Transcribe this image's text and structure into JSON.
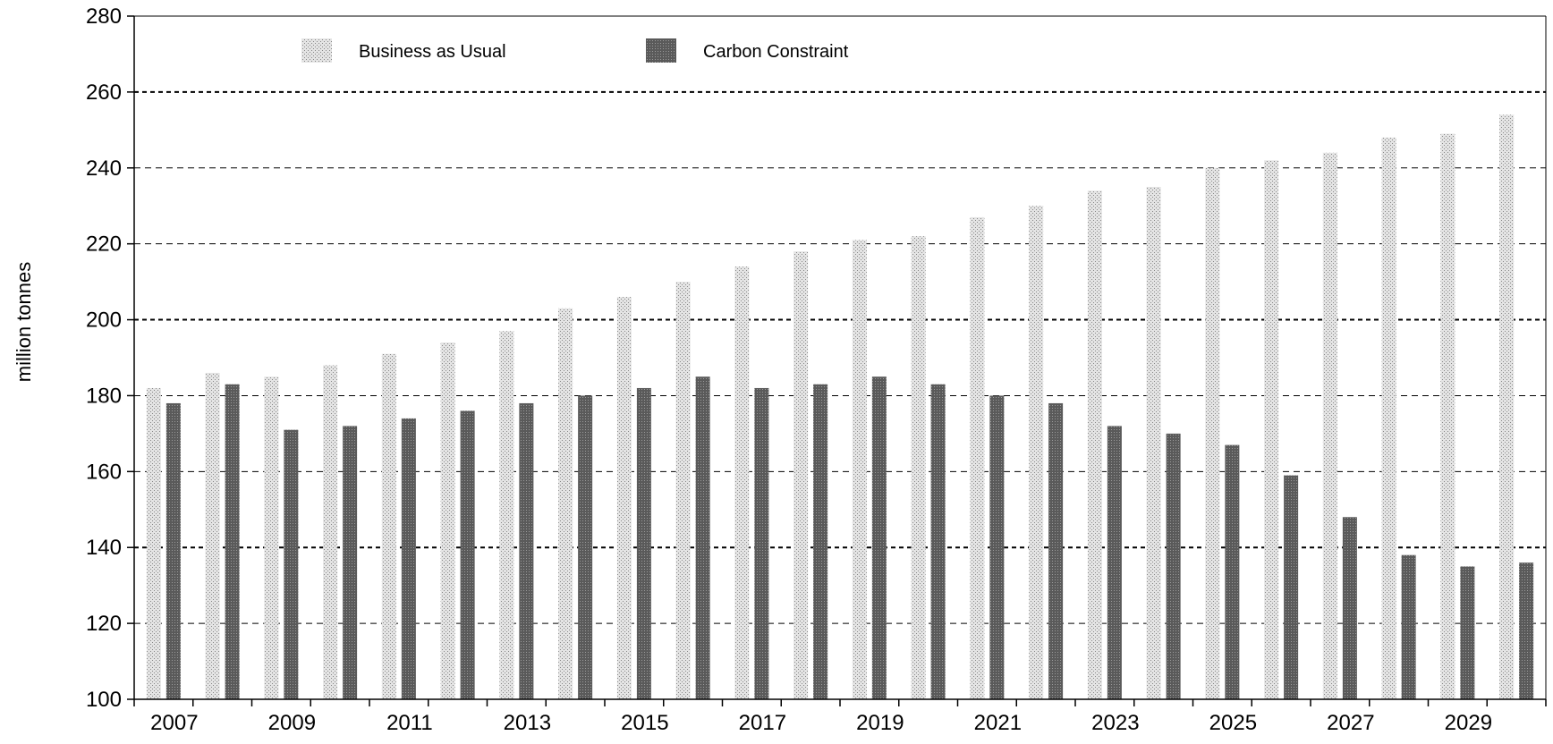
{
  "chart_data": {
    "type": "bar",
    "ylabel": "million tonnes",
    "xlabel": "",
    "ylim": [
      100,
      280
    ],
    "yticks": [
      100,
      120,
      140,
      160,
      180,
      200,
      220,
      240,
      260,
      280
    ],
    "grid": "horizontal dashed",
    "legend_position": "top-left",
    "categories": [
      "2007",
      "2008",
      "2009",
      "2010",
      "2011",
      "2012",
      "2013",
      "2014",
      "2015",
      "2016",
      "2017",
      "2018",
      "2019",
      "2020",
      "2021",
      "2022",
      "2023",
      "2024",
      "2025",
      "2026",
      "2027",
      "2028",
      "2029",
      "2030"
    ],
    "x_tick_labels": [
      "2007",
      "2009",
      "2011",
      "2013",
      "2015",
      "2017",
      "2019",
      "2021",
      "2023",
      "2025",
      "2027",
      "2029"
    ],
    "series": [
      {
        "name": "Business as Usual",
        "color": "#c8c8c8",
        "values": [
          182,
          186,
          185,
          188,
          191,
          194,
          197,
          203,
          206,
          210,
          214,
          218,
          221,
          222,
          227,
          230,
          234,
          235,
          240,
          242,
          244,
          248,
          249,
          254
        ]
      },
      {
        "name": "Carbon Constraint",
        "color": "#6e6e6e",
        "values": [
          178,
          183,
          171,
          172,
          174,
          176,
          178,
          180,
          182,
          185,
          182,
          183,
          185,
          183,
          180,
          178,
          172,
          170,
          167,
          159,
          148,
          138,
          135,
          136
        ]
      }
    ]
  }
}
